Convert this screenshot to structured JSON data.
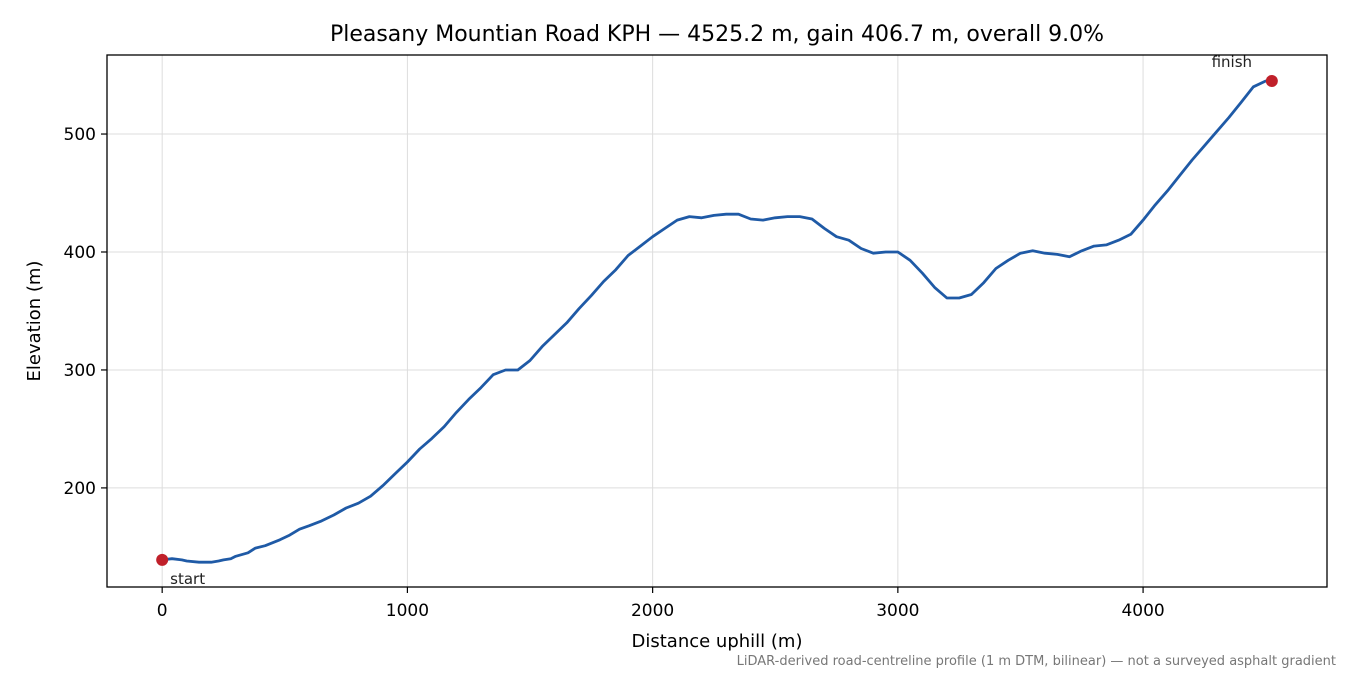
{
  "chart_data": {
    "type": "line",
    "title": "Pleasany Mountian Road KPH — 4525.2 m, gain 406.7 m, overall 9.0%",
    "xlabel": "Distance uphill (m)",
    "ylabel": "Elevation (m)",
    "xlim": [
      -225,
      4750
    ],
    "ylim": [
      116,
      567
    ],
    "xticks": [
      0,
      1000,
      2000,
      3000,
      4000
    ],
    "yticks": [
      200,
      300,
      400,
      500
    ],
    "grid": true,
    "line_color": "#1f5aa6",
    "marker_color": "#c0202a",
    "series": [
      {
        "x": [
          0,
          40,
          80,
          100,
          150,
          200,
          230,
          250,
          280,
          300,
          350,
          380,
          420,
          480,
          520,
          560,
          600,
          650,
          700,
          750,
          800,
          850,
          900,
          950,
          1000,
          1050,
          1100,
          1150,
          1200,
          1250,
          1300,
          1350,
          1400,
          1450,
          1500,
          1550,
          1600,
          1650,
          1700,
          1750,
          1800,
          1850,
          1900,
          1950,
          2000,
          2050,
          2100,
          2150,
          2200,
          2250,
          2300,
          2350,
          2400,
          2450,
          2500,
          2550,
          2600,
          2650,
          2700,
          2750,
          2800,
          2850,
          2900,
          2950,
          3000,
          3050,
          3100,
          3150,
          3200,
          3250,
          3300,
          3350,
          3400,
          3450,
          3500,
          3550,
          3600,
          3650,
          3700,
          3750,
          3800,
          3850,
          3900,
          3950,
          4000,
          4050,
          4100,
          4150,
          4200,
          4250,
          4300,
          4350,
          4400,
          4450,
          4500,
          4525
        ],
        "y": [
          139,
          140,
          139,
          138,
          137,
          137,
          138,
          139,
          140,
          142,
          145,
          149,
          151,
          156,
          160,
          165,
          168,
          172,
          177,
          183,
          187,
          193,
          202,
          212,
          222,
          233,
          242,
          252,
          264,
          275,
          285,
          296,
          300,
          300,
          308,
          320,
          330,
          340,
          352,
          363,
          375,
          385,
          397,
          405,
          413,
          420,
          427,
          430,
          429,
          431,
          432,
          432,
          428,
          427,
          429,
          430,
          430,
          428,
          420,
          413,
          410,
          403,
          399,
          400,
          400,
          393,
          382,
          370,
          361,
          361,
          364,
          374,
          386,
          393,
          399,
          401,
          399,
          398,
          396,
          401,
          405,
          406,
          410,
          415,
          427,
          440,
          452,
          465,
          478,
          490,
          502,
          514,
          527,
          540,
          545,
          545
        ]
      }
    ],
    "annotations": {
      "start_label": "start",
      "finish_label": "finish",
      "start_point": {
        "x": 0,
        "y": 139
      },
      "finish_point": {
        "x": 4525,
        "y": 545
      }
    },
    "footnote": "LiDAR-derived road-centreline profile (1 m DTM, bilinear) — not a surveyed asphalt gradient"
  }
}
